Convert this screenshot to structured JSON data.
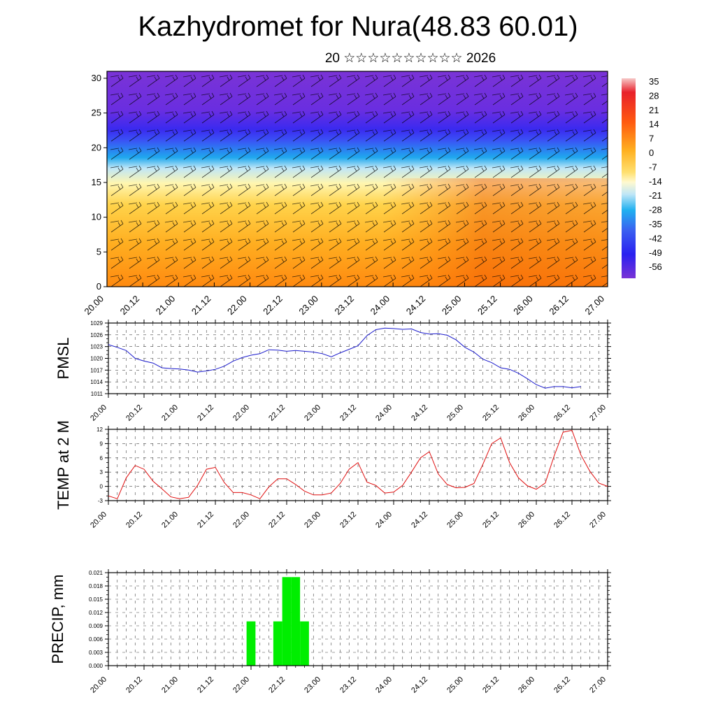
{
  "title": "Kazhydromet for Nura(48.83 60.01)",
  "subtitle": "20 ☆☆☆☆☆☆☆☆☆☆ 2026",
  "colors": {
    "pmsl_line": "#1a1acc",
    "temp_line": "#e01010",
    "precip_bar": "#00ee00",
    "frame": "#000000"
  },
  "chart_data": [
    {
      "type": "heatmap",
      "title": "",
      "x_tick_labels": [
        "20.00",
        "20.12",
        "21.00",
        "21.12",
        "22.00",
        "22.12",
        "23.00",
        "23.12",
        "24.00",
        "24.12",
        "25.00",
        "25.12",
        "26.00",
        "26.12",
        "27.00"
      ],
      "y_ticks": [
        0,
        5,
        10,
        15,
        20,
        25,
        30
      ],
      "ylim": [
        0,
        31
      ],
      "colorbar_labels": [
        "35",
        "28",
        "21",
        "14",
        "7",
        "0",
        "-7",
        "-14",
        "-21",
        "-28",
        "-35",
        "-42",
        "-49",
        "-56"
      ],
      "colorbar_range": [
        -60,
        38
      ],
      "overlay": "wind barbs"
    },
    {
      "type": "line",
      "ylabel": "PMSL",
      "y_ticks": [
        1011,
        1014,
        1017,
        1020,
        1023,
        1026,
        1029
      ],
      "ylim": [
        1011,
        1029
      ],
      "x_tick_labels": [
        "20.00",
        "20.12",
        "21.00",
        "21.12",
        "22.00",
        "22.12",
        "23.00",
        "23.12",
        "24.00",
        "24.12",
        "25.00",
        "25.12",
        "26.00",
        "26.12",
        "27.00"
      ],
      "x_step_hours": 3,
      "series": [
        {
          "values": [
            1023.5,
            1022.8,
            1022,
            1020,
            1019.3,
            1018.8,
            1017.6,
            1017.4,
            1017.3,
            1017,
            1016.5,
            1016.8,
            1017.2,
            1018,
            1019.3,
            1020.2,
            1020.8,
            1021.2,
            1022.2,
            1022.1,
            1021.8,
            1022,
            1021.8,
            1021.6,
            1021.2,
            1020.4,
            1021.4,
            1022.3,
            1023.2,
            1025.8,
            1027.3,
            1027.7,
            1027.6,
            1027.4,
            1027.5,
            1026.6,
            1026.2,
            1026.3,
            1025.9,
            1024.7,
            1022.8,
            1021.6,
            1019.8,
            1018.9,
            1017.6,
            1017.2,
            1016.2,
            1014.8,
            1013.3,
            1012.4,
            1012.8,
            1012.8,
            1012.5,
            1012.8
          ]
        }
      ]
    },
    {
      "type": "line",
      "ylabel": "TEMP at 2 M",
      "y_ticks": [
        -3,
        0,
        3,
        6,
        9,
        12
      ],
      "ylim": [
        -3,
        12
      ],
      "x_tick_labels": [
        "20.00",
        "20.12",
        "21.00",
        "21.12",
        "22.00",
        "22.12",
        "23.00",
        "23.12",
        "24.00",
        "24.12",
        "25.00",
        "25.12",
        "26.00",
        "26.12",
        "27.00"
      ],
      "x_step_hours": 3,
      "series": [
        {
          "values": [
            -2,
            -2.6,
            1.8,
            4.4,
            3.6,
            1.1,
            -0.5,
            -2.2,
            -2.6,
            -2.3,
            0.2,
            3.6,
            4,
            0.8,
            -1.3,
            -1.3,
            -1.8,
            -2.6,
            -0.1,
            1.6,
            1.6,
            0.4,
            -1,
            -1.8,
            -1.8,
            -1.4,
            0.6,
            3.6,
            5,
            0.9,
            0.2,
            -1.4,
            -1.2,
            0.2,
            3,
            6,
            7.3,
            2.6,
            0.4,
            -0.3,
            -0.2,
            0.6,
            4.6,
            9,
            10.2,
            5,
            1.8,
            0.1,
            -0.6,
            0.7,
            6.4,
            11.4,
            11.8,
            6.6,
            3.2,
            0.7,
            0
          ]
        }
      ]
    },
    {
      "type": "bar",
      "ylabel": "PRECIP, mm",
      "y_ticks": [
        "0.000",
        "0.003",
        "0.006",
        "0.009",
        "0.012",
        "0.015",
        "0.018",
        "0.021"
      ],
      "ylim": [
        0,
        0.021
      ],
      "x_tick_labels": [
        "20.00",
        "20.12",
        "21.00",
        "21.12",
        "22.00",
        "22.12",
        "23.00",
        "23.12",
        "24.00",
        "24.12",
        "25.00",
        "25.12",
        "26.00",
        "26.12",
        "27.00"
      ],
      "bars": [
        {
          "x_hour": 48,
          "value": 0.01
        },
        {
          "x_hour": 57,
          "value": 0.01
        },
        {
          "x_hour": 60,
          "value": 0.02
        },
        {
          "x_hour": 63,
          "value": 0.02
        },
        {
          "x_hour": 66,
          "value": 0.01
        }
      ]
    }
  ]
}
